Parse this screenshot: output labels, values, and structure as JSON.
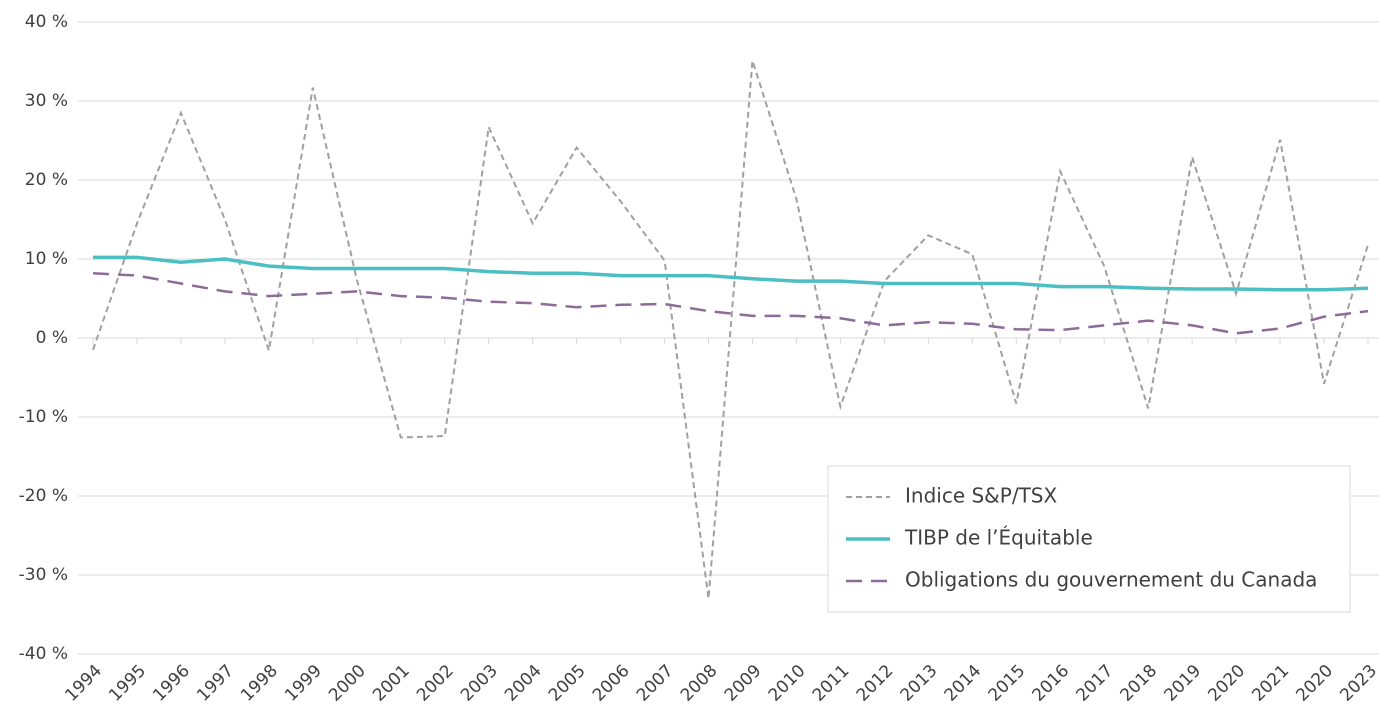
{
  "chart_data": {
    "type": "line",
    "categories": [
      "1994",
      "1995",
      "1996",
      "1997",
      "1998",
      "1999",
      "2000",
      "2001",
      "2002",
      "2003",
      "2004",
      "2005",
      "2006",
      "2007",
      "2008",
      "2009",
      "2010",
      "2011",
      "2012",
      "2013",
      "2014",
      "2015",
      "2016",
      "2017",
      "2018",
      "2019",
      "2020",
      "2021",
      "2020",
      "2023"
    ],
    "series": [
      {
        "name": "Indice S&P/TSX",
        "color": "#a0a0a0",
        "style": "dotted",
        "values": [
          -1.5,
          14.5,
          28.5,
          15,
          -1.6,
          31.7,
          7.4,
          -12.6,
          -12.4,
          26.7,
          14.5,
          24.1,
          17.3,
          9.8,
          -33,
          35.1,
          17.6,
          -8.7,
          7.2,
          13,
          10.6,
          -8.3,
          21.1,
          9.1,
          -8.9,
          22.9,
          5.6,
          25.1,
          -5.8,
          11.8
        ]
      },
      {
        "name": "TIBP de l’Équitable",
        "color": "#4bbfc4",
        "style": "solid",
        "values": [
          10.2,
          10.2,
          9.6,
          10.0,
          9.1,
          8.8,
          8.8,
          8.8,
          8.8,
          8.4,
          8.2,
          8.2,
          7.9,
          7.9,
          7.9,
          7.5,
          7.2,
          7.2,
          6.9,
          6.9,
          6.9,
          6.9,
          6.5,
          6.5,
          6.3,
          6.2,
          6.2,
          6.1,
          6.1,
          6.3
        ]
      },
      {
        "name": "Obligations du gouvernement du Canada",
        "color": "#8e6a9a",
        "style": "dashed",
        "values": [
          8.2,
          7.9,
          6.9,
          5.9,
          5.3,
          5.6,
          5.9,
          5.3,
          5.1,
          4.6,
          4.4,
          3.9,
          4.2,
          4.3,
          3.4,
          2.8,
          2.8,
          2.5,
          1.6,
          2.0,
          1.8,
          1.1,
          1.0,
          1.6,
          2.2,
          1.6,
          0.6,
          1.2,
          2.7,
          3.4
        ]
      }
    ],
    "ylim": [
      -40,
      40
    ],
    "yticks": [
      {
        "value": -40,
        "label": "-40 %"
      },
      {
        "value": -30,
        "label": "-30 %"
      },
      {
        "value": -20,
        "label": "-20 %"
      },
      {
        "value": -10,
        "label": "-10 %"
      },
      {
        "value": 0,
        "label": "0 %"
      },
      {
        "value": 10,
        "label": "10 %"
      },
      {
        "value": 20,
        "label": "20 %"
      },
      {
        "value": 30,
        "label": "30 %"
      },
      {
        "value": 40,
        "label": "40 %"
      }
    ],
    "grid": true,
    "legend": "lower right"
  }
}
